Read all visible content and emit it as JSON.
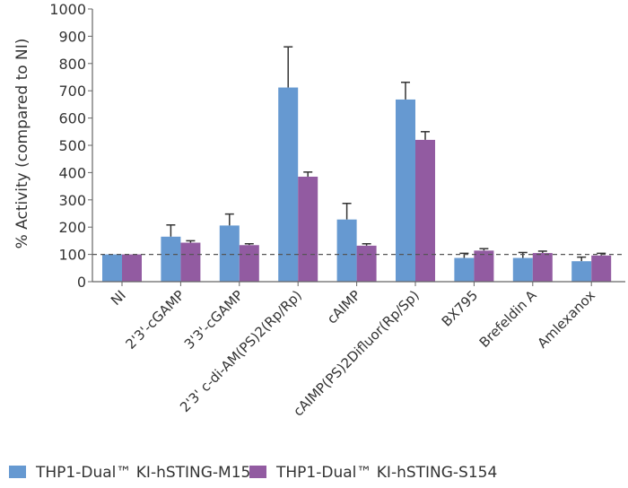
{
  "chart_data": {
    "type": "bar",
    "title": "",
    "xlabel": "",
    "ylabel": "% Activity (compared to NI)",
    "ylim": [
      0,
      1000
    ],
    "yticks": [
      0,
      100,
      200,
      300,
      400,
      500,
      600,
      700,
      800,
      900,
      1000
    ],
    "reference_line": {
      "y": 100,
      "style": "dashed"
    },
    "grid": false,
    "legend_position": "bottom",
    "categories": [
      "NI",
      "2'3'-cGAMP",
      "3'3'-cGAMP",
      "2'3' c-di-AM(PS)2(Rp/Rp)",
      "cAIMP",
      "cAIMP(PS)2Difluor(Rp/Sp)",
      "BX795",
      "Brefeldin A",
      "Amlexanox"
    ],
    "series": [
      {
        "name": "THP1-Dual™ KI-hSTING-M155",
        "color": "#6699d1",
        "values": [
          100,
          165,
          206,
          712,
          228,
          668,
          87,
          87,
          75
        ],
        "error_upper": [
          100,
          208,
          248,
          861,
          287,
          731,
          104,
          107,
          90
        ]
      },
      {
        "name": "THP1-Dual™ KI-hSTING-S154",
        "color": "#925ba1",
        "values": [
          100,
          143,
          134,
          385,
          132,
          520,
          114,
          105,
          96
        ],
        "error_upper": [
          100,
          150,
          139,
          402,
          139,
          550,
          121,
          112,
          104
        ]
      }
    ]
  }
}
